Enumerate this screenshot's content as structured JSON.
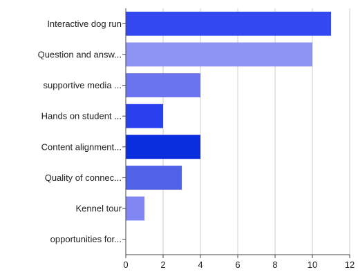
{
  "chart_data": {
    "type": "bar",
    "orientation": "horizontal",
    "title": "",
    "xlabel": "",
    "ylabel": "",
    "categories": [
      "Interactive dog run",
      "Question and answ...",
      "supportive media ...",
      "Hands on student ...",
      "Content alignment...",
      "Quality of connec...",
      "Kennel tour",
      "opportunities for..."
    ],
    "values": [
      11,
      10,
      4,
      2,
      4,
      3,
      1,
      0
    ],
    "colors": [
      "#3348ee",
      "#8c93f0",
      "#6b73ee",
      "#2a40ee",
      "#0a2de0",
      "#5062e8",
      "#7f86f2",
      "#5a67ea"
    ],
    "xlim": [
      0,
      12
    ],
    "xticks": [
      "0",
      "2",
      "4",
      "6",
      "8",
      "10",
      "12"
    ],
    "grid": true,
    "legend": "none"
  }
}
